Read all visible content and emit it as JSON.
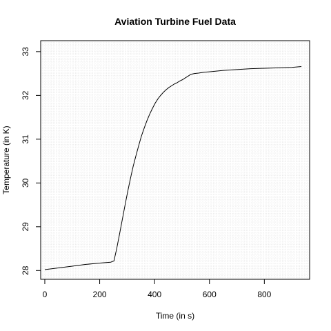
{
  "chart_data": {
    "type": "line",
    "title": "Aviation Turbine Fuel Data",
    "xlabel": "Time (in s)",
    "ylabel": "Temperature (in K)",
    "xlim": [
      -15,
      965
    ],
    "ylim": [
      27.8,
      33.25
    ],
    "x_ticks": [
      0,
      200,
      400,
      600,
      800
    ],
    "y_ticks": [
      28,
      29,
      30,
      31,
      32,
      33
    ],
    "grid": true,
    "legend": "none",
    "series": [
      {
        "color": "#000000",
        "x": [
          0,
          50,
          100,
          150,
          200,
          240,
          252,
          262,
          272,
          282,
          292,
          302,
          312,
          322,
          332,
          342,
          352,
          362,
          372,
          382,
          392,
          402,
          412,
          422,
          432,
          442,
          452,
          462,
          472,
          482,
          492,
          502,
          512,
          522,
          532,
          545,
          560,
          580,
          600,
          650,
          700,
          750,
          800,
          850,
          900,
          935
        ],
        "y": [
          28.02,
          28.06,
          28.1,
          28.14,
          28.17,
          28.19,
          28.22,
          28.5,
          28.82,
          29.15,
          29.48,
          29.8,
          30.1,
          30.38,
          30.62,
          30.85,
          31.07,
          31.25,
          31.42,
          31.57,
          31.7,
          31.82,
          31.92,
          32.0,
          32.07,
          32.13,
          32.18,
          32.22,
          32.26,
          32.29,
          32.33,
          32.36,
          32.4,
          32.44,
          32.48,
          32.5,
          32.51,
          32.53,
          32.54,
          32.57,
          32.59,
          32.61,
          32.62,
          32.63,
          32.64,
          32.66
        ]
      }
    ]
  }
}
